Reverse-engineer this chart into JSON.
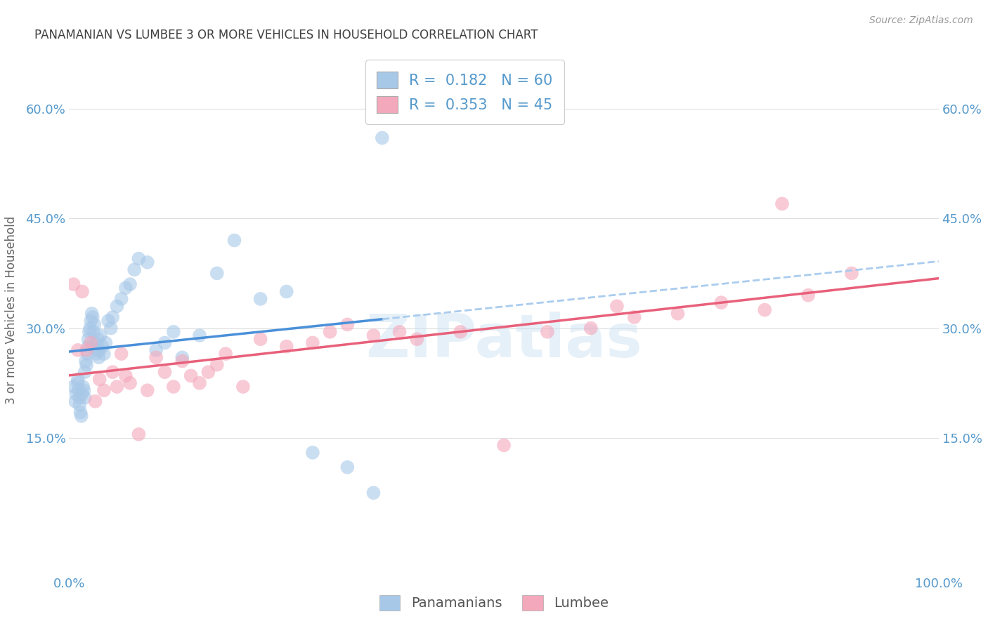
{
  "title": "PANAMANIAN VS LUMBEE 3 OR MORE VEHICLES IN HOUSEHOLD CORRELATION CHART",
  "source": "Source: ZipAtlas.com",
  "ylabel": "3 or more Vehicles in Household",
  "watermark": "ZIPatlas",
  "legend_label1": "Panamanians",
  "legend_label2": "Lumbee",
  "r1": 0.182,
  "n1": 60,
  "r2": 0.353,
  "n2": 45,
  "color_blue": "#a8c8e8",
  "color_pink": "#f4a8bc",
  "color_blue_solid": "#4a90d9",
  "color_blue_dashed": "#aaccee",
  "color_pink_solid": "#e8607a",
  "title_color": "#404040",
  "axis_label_color": "#5599cc",
  "ytick_color": "#5599cc",
  "grid_color": "#dddddd",
  "xlim": [
    0.0,
    1.0
  ],
  "ylim": [
    -0.03,
    0.68
  ],
  "yticks": [
    0.15,
    0.3,
    0.45,
    0.6
  ],
  "ytick_labels": [
    "15.0%",
    "30.0%",
    "45.0%",
    "60.0%"
  ],
  "xticks": [
    0.0,
    0.25,
    0.5,
    0.75,
    1.0
  ],
  "xtick_labels": [
    "0.0%",
    "",
    "",
    "",
    "100.0%"
  ],
  "pan_x": [
    0.005,
    0.007,
    0.008,
    0.01,
    0.01,
    0.011,
    0.012,
    0.012,
    0.013,
    0.014,
    0.015,
    0.016,
    0.017,
    0.018,
    0.018,
    0.019,
    0.02,
    0.021,
    0.022,
    0.022,
    0.023,
    0.024,
    0.025,
    0.026,
    0.027,
    0.028,
    0.029,
    0.03,
    0.031,
    0.032,
    0.033,
    0.034,
    0.035,
    0.036,
    0.038,
    0.04,
    0.042,
    0.045,
    0.048,
    0.05,
    0.055,
    0.06,
    0.065,
    0.07,
    0.075,
    0.08,
    0.09,
    0.1,
    0.11,
    0.12,
    0.13,
    0.15,
    0.17,
    0.19,
    0.22,
    0.25,
    0.28,
    0.32,
    0.35,
    0.36
  ],
  "pan_y": [
    0.22,
    0.2,
    0.21,
    0.225,
    0.23,
    0.215,
    0.205,
    0.195,
    0.185,
    0.18,
    0.21,
    0.22,
    0.215,
    0.205,
    0.24,
    0.255,
    0.25,
    0.265,
    0.275,
    0.285,
    0.295,
    0.3,
    0.31,
    0.32,
    0.315,
    0.295,
    0.305,
    0.28,
    0.265,
    0.27,
    0.285,
    0.26,
    0.27,
    0.29,
    0.275,
    0.265,
    0.28,
    0.31,
    0.3,
    0.315,
    0.33,
    0.34,
    0.355,
    0.36,
    0.38,
    0.395,
    0.39,
    0.27,
    0.28,
    0.295,
    0.26,
    0.29,
    0.375,
    0.42,
    0.34,
    0.35,
    0.13,
    0.11,
    0.075,
    0.56
  ],
  "lum_x": [
    0.005,
    0.01,
    0.015,
    0.02,
    0.025,
    0.03,
    0.035,
    0.04,
    0.05,
    0.055,
    0.06,
    0.065,
    0.07,
    0.08,
    0.09,
    0.1,
    0.11,
    0.12,
    0.13,
    0.14,
    0.15,
    0.16,
    0.17,
    0.18,
    0.2,
    0.22,
    0.25,
    0.28,
    0.3,
    0.32,
    0.35,
    0.38,
    0.4,
    0.45,
    0.5,
    0.55,
    0.6,
    0.63,
    0.65,
    0.7,
    0.75,
    0.8,
    0.82,
    0.85,
    0.9
  ],
  "lum_y": [
    0.36,
    0.27,
    0.35,
    0.27,
    0.28,
    0.2,
    0.23,
    0.215,
    0.24,
    0.22,
    0.265,
    0.235,
    0.225,
    0.155,
    0.215,
    0.26,
    0.24,
    0.22,
    0.255,
    0.235,
    0.225,
    0.24,
    0.25,
    0.265,
    0.22,
    0.285,
    0.275,
    0.28,
    0.295,
    0.305,
    0.29,
    0.295,
    0.285,
    0.295,
    0.14,
    0.295,
    0.3,
    0.33,
    0.315,
    0.32,
    0.335,
    0.325,
    0.47,
    0.345,
    0.375
  ]
}
